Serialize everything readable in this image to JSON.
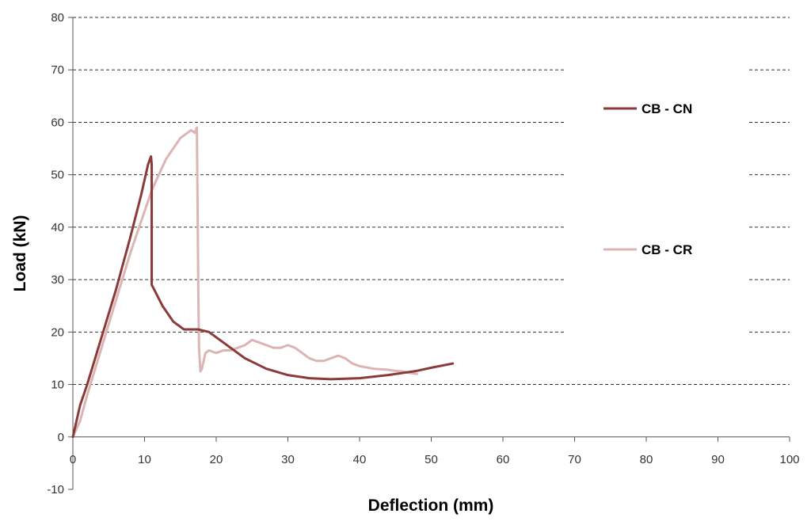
{
  "chart_data": {
    "type": "line",
    "title": "",
    "xlabel": "Deflection (mm)",
    "ylabel": "Load (kN)",
    "xlim": [
      0,
      100
    ],
    "ylim": [
      -10,
      80
    ],
    "x_ticks": [
      0,
      10,
      20,
      30,
      40,
      50,
      60,
      70,
      80,
      90,
      100
    ],
    "y_ticks": [
      -10,
      0,
      10,
      20,
      30,
      40,
      50,
      60,
      70,
      80
    ],
    "grid": "horizontal dashed",
    "legend_position": "right",
    "series": [
      {
        "name": "CB - CN",
        "color": "#8b3a3a",
        "points": [
          [
            0,
            0
          ],
          [
            1,
            6
          ],
          [
            2,
            10
          ],
          [
            4,
            19
          ],
          [
            6,
            28
          ],
          [
            8,
            38
          ],
          [
            9.5,
            46
          ],
          [
            10.5,
            52
          ],
          [
            10.9,
            53.5
          ],
          [
            11,
            52
          ],
          [
            11,
            29
          ],
          [
            11.2,
            28.5
          ],
          [
            12.5,
            25
          ],
          [
            14,
            22
          ],
          [
            15.5,
            20.5
          ],
          [
            17.5,
            20.5
          ],
          [
            19,
            20
          ],
          [
            21,
            18
          ],
          [
            24,
            15
          ],
          [
            27,
            13
          ],
          [
            30,
            11.8
          ],
          [
            33,
            11.2
          ],
          [
            36,
            11
          ],
          [
            40,
            11.2
          ],
          [
            44,
            11.8
          ],
          [
            48,
            12.6
          ],
          [
            50,
            13.2
          ],
          [
            53,
            14
          ]
        ]
      },
      {
        "name": "CB - CR",
        "color": "#dcb4b4",
        "points": [
          [
            0,
            0
          ],
          [
            1,
            3
          ],
          [
            2,
            8
          ],
          [
            4,
            17
          ],
          [
            6,
            26
          ],
          [
            8,
            35
          ],
          [
            10,
            43
          ],
          [
            11,
            47
          ],
          [
            12,
            50
          ],
          [
            13,
            53
          ],
          [
            14,
            55
          ],
          [
            15,
            57
          ],
          [
            16,
            58
          ],
          [
            16.5,
            58.5
          ],
          [
            17,
            58
          ],
          [
            17.3,
            59
          ],
          [
            17.4,
            44
          ],
          [
            17.5,
            28
          ],
          [
            17.6,
            17
          ],
          [
            17.8,
            12.5
          ],
          [
            18,
            13
          ],
          [
            18.5,
            16
          ],
          [
            19,
            16.5
          ],
          [
            20,
            16
          ],
          [
            21,
            16.5
          ],
          [
            22,
            16.5
          ],
          [
            23,
            17
          ],
          [
            24,
            17.5
          ],
          [
            25,
            18.5
          ],
          [
            26,
            18
          ],
          [
            27,
            17.5
          ],
          [
            28,
            17
          ],
          [
            29,
            17
          ],
          [
            30,
            17.5
          ],
          [
            31,
            17
          ],
          [
            32,
            16
          ],
          [
            33,
            15
          ],
          [
            34,
            14.5
          ],
          [
            35,
            14.5
          ],
          [
            36,
            15
          ],
          [
            37,
            15.5
          ],
          [
            38,
            15
          ],
          [
            39,
            14
          ],
          [
            40,
            13.5
          ],
          [
            42,
            13
          ],
          [
            44,
            12.8
          ],
          [
            45,
            12.6
          ],
          [
            46,
            12.5
          ],
          [
            47,
            12.2
          ],
          [
            48,
            12
          ]
        ]
      }
    ]
  }
}
